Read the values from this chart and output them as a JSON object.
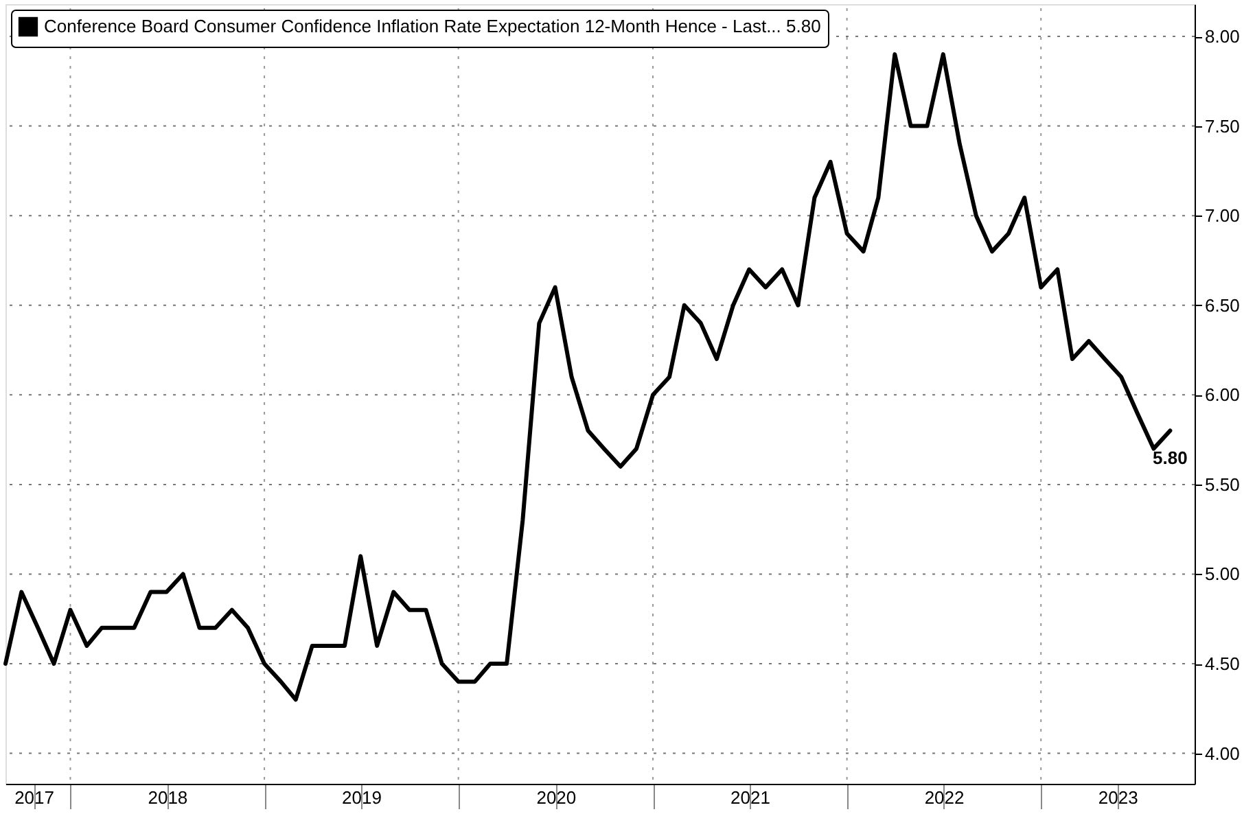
{
  "chart_data": {
    "type": "line",
    "x": [
      "2017-09",
      "2017-10",
      "2017-11",
      "2017-12",
      "2018-01",
      "2018-02",
      "2018-03",
      "2018-04",
      "2018-05",
      "2018-06",
      "2018-07",
      "2018-08",
      "2018-09",
      "2018-10",
      "2018-11",
      "2018-12",
      "2019-01",
      "2019-02",
      "2019-03",
      "2019-04",
      "2019-05",
      "2019-06",
      "2019-07",
      "2019-08",
      "2019-09",
      "2019-10",
      "2019-11",
      "2019-12",
      "2020-01",
      "2020-02",
      "2020-03",
      "2020-04",
      "2020-05",
      "2020-06",
      "2020-07",
      "2020-08",
      "2020-09",
      "2020-10",
      "2020-11",
      "2020-12",
      "2021-01",
      "2021-02",
      "2021-03",
      "2021-04",
      "2021-05",
      "2021-06",
      "2021-07",
      "2021-08",
      "2021-09",
      "2021-10",
      "2021-11",
      "2021-12",
      "2022-01",
      "2022-02",
      "2022-03",
      "2022-04",
      "2022-05",
      "2022-06",
      "2022-07",
      "2022-08",
      "2022-09",
      "2022-10",
      "2022-11",
      "2022-12",
      "2023-01",
      "2023-02",
      "2023-03",
      "2023-04",
      "2023-05",
      "2023-06",
      "2023-07",
      "2023-08",
      "2023-09"
    ],
    "series": [
      {
        "name": "Conference Board Consumer Confidence Inflation Rate Expectation 12-Month Hence - Last... 5.80",
        "color": "#000000",
        "values": [
          4.5,
          4.9,
          4.7,
          4.5,
          4.8,
          4.6,
          4.7,
          4.7,
          4.7,
          4.9,
          4.9,
          5.0,
          4.7,
          4.7,
          4.8,
          4.7,
          4.5,
          4.4,
          4.3,
          4.6,
          4.6,
          4.6,
          5.1,
          4.6,
          4.9,
          4.8,
          4.8,
          4.5,
          4.4,
          4.4,
          4.5,
          4.5,
          5.3,
          6.4,
          6.6,
          6.1,
          5.8,
          5.7,
          5.6,
          5.7,
          6.0,
          6.1,
          6.5,
          6.4,
          6.2,
          6.5,
          6.7,
          6.6,
          6.7,
          6.5,
          7.1,
          7.3,
          6.9,
          6.8,
          7.1,
          7.9,
          7.5,
          7.5,
          7.9,
          7.4,
          7.0,
          6.8,
          6.9,
          7.1,
          6.6,
          6.7,
          6.2,
          6.3,
          6.2,
          6.1,
          5.9,
          5.7,
          5.8
        ],
        "value_labels": [
          null,
          null,
          null,
          null,
          null,
          null,
          null,
          null,
          null,
          null,
          null,
          null,
          null,
          null,
          null,
          null,
          null,
          null,
          null,
          null,
          null,
          null,
          null,
          null,
          null,
          null,
          null,
          null,
          null,
          null,
          null,
          null,
          null,
          null,
          null,
          null,
          null,
          null,
          null,
          null,
          null,
          null,
          null,
          null,
          null,
          null,
          null,
          null,
          null,
          null,
          null,
          null,
          null,
          null,
          null,
          null,
          null,
          null,
          null,
          null,
          null,
          null,
          null,
          null,
          null,
          null,
          null,
          null,
          null,
          null,
          null,
          null,
          "5.80"
        ]
      }
    ],
    "xlim": [
      "2017-09",
      "2023-10-17"
    ],
    "xticks": [
      {
        "value": "2017-10-24",
        "label": "2017"
      },
      {
        "value": "2018-01-01",
        "label": null
      },
      {
        "value": "2018-07-02",
        "label": "2018"
      },
      {
        "value": "2019-01-01",
        "label": null
      },
      {
        "value": "2019-07-02",
        "label": "2019"
      },
      {
        "value": "2020-01-01",
        "label": null
      },
      {
        "value": "2020-07-02",
        "label": "2020"
      },
      {
        "value": "2021-01-01",
        "label": null
      },
      {
        "value": "2021-07-02",
        "label": "2021"
      },
      {
        "value": "2022-01-01",
        "label": null
      },
      {
        "value": "2022-07-02",
        "label": "2022"
      },
      {
        "value": "2023-01-01",
        "label": null
      },
      {
        "value": "2023-05-25",
        "label": "2023"
      }
    ],
    "ylim": [
      3.83,
      8.18
    ],
    "yticks": [
      {
        "value": 4.0,
        "label": "4.00"
      },
      {
        "value": 4.5,
        "label": "4.50"
      },
      {
        "value": 5.0,
        "label": "5.00"
      },
      {
        "value": 5.5,
        "label": "5.50"
      },
      {
        "value": 6.0,
        "label": "6.00"
      },
      {
        "value": 6.5,
        "label": "6.50"
      },
      {
        "value": 7.0,
        "label": "7.00"
      },
      {
        "value": 7.5,
        "label": "7.50"
      },
      {
        "value": 8.0,
        "label": "8.00"
      }
    ],
    "grid": true,
    "legend": "top left",
    "marker": "none",
    "line_style": "solid"
  }
}
